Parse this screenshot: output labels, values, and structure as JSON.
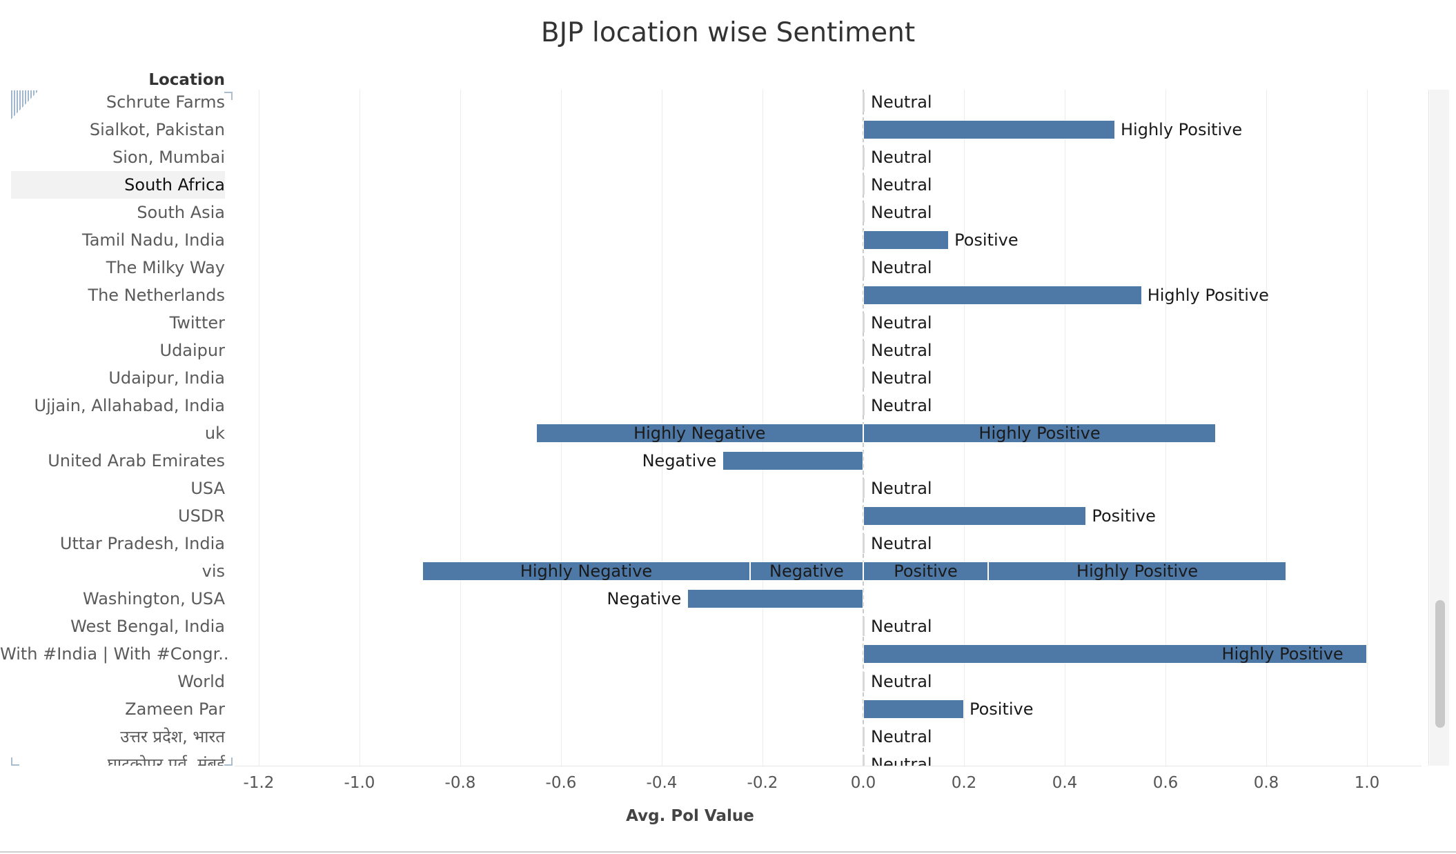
{
  "chart_data": {
    "type": "bar",
    "title": "BJP location wise Sentiment",
    "row_header": "Location",
    "xlabel": "Avg. Pol Value",
    "xlim": [
      -1.2,
      1.12
    ],
    "x_ticks": [
      "-1.2",
      "-1.0",
      "-0.8",
      "-0.6",
      "-0.4",
      "-0.2",
      "0.0",
      "0.2",
      "0.4",
      "0.6",
      "0.8",
      "1.0"
    ],
    "grid": true,
    "bar_color": "#4e79a7",
    "selected_row": "South Africa",
    "rows": [
      {
        "location": "Schrute Farms",
        "segments": [
          {
            "label": "Neutral",
            "start": 0,
            "end": 0
          }
        ]
      },
      {
        "location": "Sialkot, Pakistan",
        "segments": [
          {
            "label": "Highly Positive",
            "start": 0,
            "end": 0.5
          }
        ]
      },
      {
        "location": "Sion, Mumbai",
        "segments": [
          {
            "label": "Neutral",
            "start": 0,
            "end": 0
          }
        ]
      },
      {
        "location": "South Africa",
        "segments": [
          {
            "label": "Neutral",
            "start": 0,
            "end": 0
          }
        ]
      },
      {
        "location": "South Asia",
        "segments": [
          {
            "label": "Neutral",
            "start": 0,
            "end": 0
          }
        ]
      },
      {
        "location": "Tamil Nadu, India",
        "segments": [
          {
            "label": "Positive",
            "start": 0,
            "end": 0.17
          }
        ]
      },
      {
        "location": "The Milky Way",
        "segments": [
          {
            "label": "Neutral",
            "start": 0,
            "end": 0
          }
        ]
      },
      {
        "location": "The Netherlands",
        "segments": [
          {
            "label": "Highly Positive",
            "start": 0,
            "end": 0.553
          }
        ]
      },
      {
        "location": "Twitter",
        "segments": [
          {
            "label": "Neutral",
            "start": 0,
            "end": 0
          }
        ]
      },
      {
        "location": "Udaipur",
        "segments": [
          {
            "label": "Neutral",
            "start": 0,
            "end": 0
          }
        ]
      },
      {
        "location": "Udaipur, India",
        "segments": [
          {
            "label": "Neutral",
            "start": 0,
            "end": 0
          }
        ]
      },
      {
        "location": "Ujjain, Allahabad, India",
        "segments": [
          {
            "label": "Neutral",
            "start": 0,
            "end": 0
          }
        ]
      },
      {
        "location": "uk",
        "segments": [
          {
            "label": "Highly Negative",
            "start": -0.65,
            "end": 0
          },
          {
            "label": "Highly Positive",
            "start": 0,
            "end": 0.7
          }
        ]
      },
      {
        "location": "United Arab Emirates",
        "segments": [
          {
            "label": "Negative",
            "start": -0.28,
            "end": 0
          }
        ]
      },
      {
        "location": "USA",
        "segments": [
          {
            "label": "Neutral",
            "start": 0,
            "end": 0
          }
        ]
      },
      {
        "location": "USDR",
        "segments": [
          {
            "label": "Positive",
            "start": 0,
            "end": 0.443
          }
        ]
      },
      {
        "location": "Uttar Pradesh, India",
        "segments": [
          {
            "label": "Neutral",
            "start": 0,
            "end": 0
          }
        ]
      },
      {
        "location": "vis",
        "segments": [
          {
            "label": "Highly Negative",
            "start": -0.875,
            "end": -0.225
          },
          {
            "label": "Negative",
            "start": -0.225,
            "end": 0
          },
          {
            "label": "Positive",
            "start": 0,
            "end": 0.248
          },
          {
            "label": "Highly Positive",
            "start": 0.248,
            "end": 0.84
          }
        ]
      },
      {
        "location": "Washington, USA",
        "segments": [
          {
            "label": "Negative",
            "start": -0.35,
            "end": 0
          }
        ]
      },
      {
        "location": "West Bengal, India",
        "segments": [
          {
            "label": "Neutral",
            "start": 0,
            "end": 0
          }
        ]
      },
      {
        "location": "With #India | With #Congr..",
        "segments": [
          {
            "label": "Highly Positive",
            "start": 0,
            "end": 1.0
          }
        ]
      },
      {
        "location": "World",
        "segments": [
          {
            "label": "Neutral",
            "start": 0,
            "end": 0
          }
        ]
      },
      {
        "location": "Zameen Par",
        "segments": [
          {
            "label": "Positive",
            "start": 0,
            "end": 0.2
          }
        ]
      },
      {
        "location": "उत्तर प्रदेश, भारत",
        "segments": [
          {
            "label": "Neutral",
            "start": 0,
            "end": 0
          }
        ]
      },
      {
        "location": "घाटकोपर पूर्व, मुंबई",
        "segments": [
          {
            "label": "Neutral",
            "start": 0,
            "end": 0
          }
        ]
      }
    ]
  }
}
